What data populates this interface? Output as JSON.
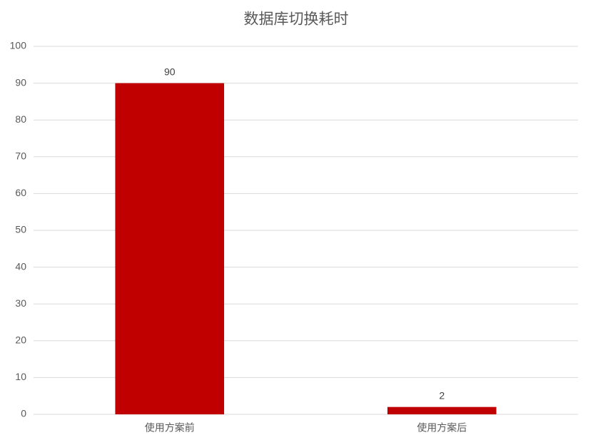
{
  "chart_data": {
    "type": "bar",
    "title": "数据库切换耗时",
    "categories": [
      "使用方案前",
      "使用方案后"
    ],
    "values": [
      90,
      2
    ],
    "color": "#c00000",
    "ylim": [
      0,
      100
    ],
    "yticks": [
      0,
      10,
      20,
      30,
      40,
      50,
      60,
      70,
      80,
      90,
      100
    ],
    "grid": true
  }
}
